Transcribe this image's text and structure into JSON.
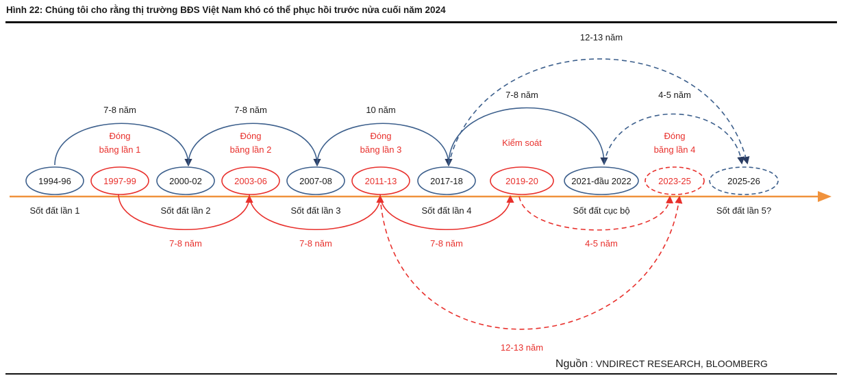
{
  "title": "Hình 22: Chúng tôi cho rằng thị trường BĐS Việt Nam khó có thể phục hồi trước nửa cuối năm 2024",
  "source": {
    "prefix": "Nguồn",
    "separator": " : ",
    "text": "VNDIRECT RESEARCH, BLOOMBERG"
  },
  "colors": {
    "blue": "#3c5f8c",
    "red": "#e8302c",
    "arrow_line": "#f0923c",
    "text": "#1a1a1a"
  },
  "periods": [
    {
      "label": "1994-96",
      "type": "blue",
      "style": "solid"
    },
    {
      "label": "1997-99",
      "type": "red",
      "style": "solid"
    },
    {
      "label": "2000-02",
      "type": "blue",
      "style": "solid"
    },
    {
      "label": "2003-06",
      "type": "red",
      "style": "solid"
    },
    {
      "label": "2007-08",
      "type": "blue",
      "style": "solid"
    },
    {
      "label": "2011-13",
      "type": "red",
      "style": "solid"
    },
    {
      "label": "2017-18",
      "type": "blue",
      "style": "solid"
    },
    {
      "label": "2019-20",
      "type": "red",
      "style": "solid"
    },
    {
      "label": "2021-đầu 2022",
      "type": "blue",
      "style": "solid"
    },
    {
      "label": "2023-25",
      "type": "red",
      "style": "dashed"
    },
    {
      "label": "2025-26",
      "type": "blue",
      "style": "dashed"
    }
  ],
  "phase_labels_above": [
    {
      "lines": [
        "Đóng",
        "băng lần 1"
      ]
    },
    {
      "lines": [
        "Đóng",
        "băng lần 2"
      ]
    },
    {
      "lines": [
        "Đóng",
        "băng lần 3"
      ]
    },
    {
      "lines": [
        "Kiểm soát"
      ]
    },
    {
      "lines": [
        "Đóng",
        "băng lần 4"
      ]
    }
  ],
  "phase_labels_below": [
    "Sốt đất lần 1",
    "Sốt đất lần 2",
    "Sốt đất lần 3",
    "Sốt đất lần 4",
    "Sốt đất cục bộ",
    "Sốt đất lần 5?"
  ],
  "cycle_labels": {
    "blue_top": [
      "7-8 năm",
      "7-8 năm",
      "10 năm",
      "7-8 năm",
      "4-5 năm"
    ],
    "blue_long": "12-13 năm",
    "red_bottom": [
      "7-8 năm",
      "7-8 năm",
      "7-8 năm",
      "4-5 năm"
    ],
    "red_long": "12-13 năm"
  }
}
